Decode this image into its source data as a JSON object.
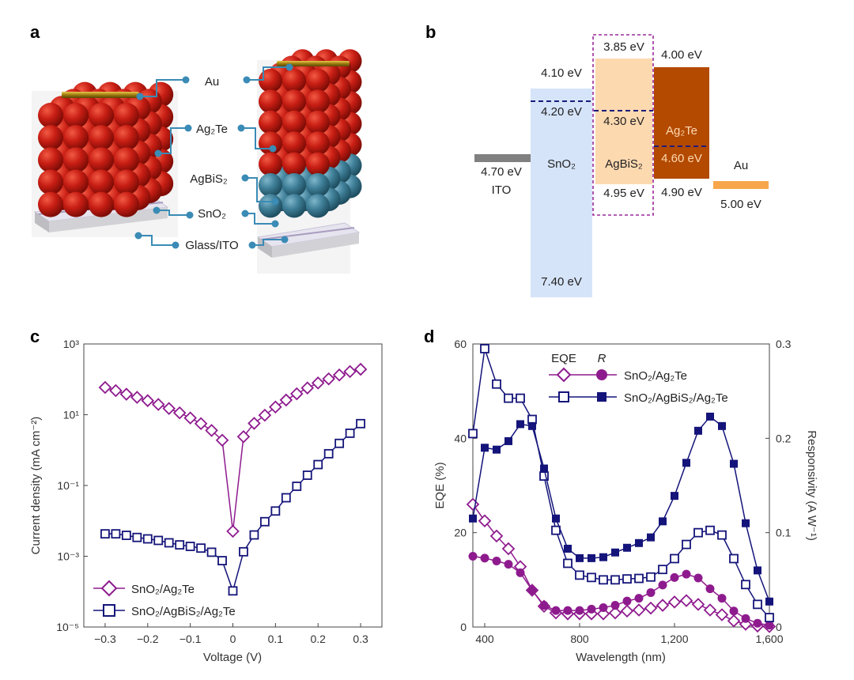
{
  "panels": {
    "a": {
      "label": "a",
      "layers": [
        "Au",
        "Ag₂Te",
        "AgBiS₂",
        "SnO₂",
        "Glass/ITO"
      ],
      "colors": {
        "ag2te": "#c81e14",
        "agbis2": "#3f7f98",
        "connector": "#3a8bb5",
        "gold": "#b8900f"
      }
    },
    "b": {
      "label": "b",
      "materials": {
        "ito": {
          "name": "ITO",
          "level": "4.70 eV",
          "color": "#808080"
        },
        "sno2": {
          "name": "SnO₂",
          "top": "4.10 eV",
          "fermi": "4.20 eV",
          "bottom": "7.40 eV",
          "color": "#d6e4f9"
        },
        "agbis2": {
          "name": "AgBiS₂",
          "top": "3.85 eV",
          "fermi": "4.30 eV",
          "bottom": "4.95 eV",
          "color": "#fdd9b0"
        },
        "ag2te": {
          "name": "Ag₂Te",
          "top": "4.00 eV",
          "fermi": "4.60 eV",
          "bottom": "4.90 eV",
          "color": "#b34a00"
        },
        "au": {
          "name": "Au",
          "level": "5.00 eV",
          "color": "#f7a64c"
        }
      }
    }
  },
  "chart_data": [
    {
      "panel": "c",
      "type": "line",
      "xlabel": "Voltage (V)",
      "ylabel": "Current density (mA cm⁻²)",
      "yscale": "log",
      "xlim": [
        -0.35,
        0.35
      ],
      "ylim": [
        1e-05,
        1000.0
      ],
      "xticks": [
        -0.3,
        -0.2,
        -0.1,
        0,
        0.1,
        0.2,
        0.3
      ],
      "xtick_labels": [
        "−0.3",
        "−0.2",
        "−0.1",
        "0",
        "0.1",
        "0.2",
        "0.3"
      ],
      "ytick_labels": [
        "10³",
        "10¹",
        "10⁻¹",
        "10⁻³",
        "10⁻⁵"
      ],
      "yticks": [
        1000.0,
        10.0,
        0.1,
        0.001,
        1e-05
      ],
      "legend": "bottom-left",
      "x": [
        -0.3,
        -0.275,
        -0.25,
        -0.225,
        -0.2,
        -0.175,
        -0.15,
        -0.125,
        -0.1,
        -0.075,
        -0.05,
        -0.025,
        0,
        0.025,
        0.05,
        0.075,
        0.1,
        0.125,
        0.15,
        0.175,
        0.2,
        0.225,
        0.25,
        0.275,
        0.3
      ],
      "series": [
        {
          "name": "SnO₂/Ag₂Te",
          "marker": "diamond-open",
          "color": "#8e1b8e",
          "values": [
            59,
            48,
            38,
            31,
            25,
            19.5,
            15,
            11.3,
            8.1,
            5.6,
            3.6,
            1.9,
            0.0051,
            2.4,
            5.7,
            9.7,
            16.5,
            26,
            39,
            57,
            79,
            103,
            133,
            166,
            192
          ]
        },
        {
          "name": "SnO₂/AgBiS₂/Ag₂Te",
          "marker": "square-open",
          "color": "#14147a",
          "values": [
            0.0043,
            0.0043,
            0.0039,
            0.0034,
            0.0031,
            0.0028,
            0.0024,
            0.0021,
            0.0019,
            0.0017,
            0.0013,
            0.00075,
            0.000105,
            0.00134,
            0.004,
            0.0095,
            0.019,
            0.045,
            0.095,
            0.195,
            0.39,
            0.79,
            1.55,
            3.0,
            5.6
          ]
        }
      ]
    },
    {
      "panel": "d",
      "type": "line",
      "xlabel": "Wavelength (nm)",
      "ylabel": "EQE (%)",
      "y2label": "Responsivity (A W⁻¹)",
      "xlim": [
        350,
        1600
      ],
      "ylim": [
        0,
        60
      ],
      "y2lim": [
        0,
        0.3
      ],
      "xticks": [
        400,
        800,
        1200,
        1600
      ],
      "xtick_labels": [
        "400",
        "800",
        "1,200",
        "1,600"
      ],
      "yticks": [
        0,
        20,
        40,
        60
      ],
      "ytick_labels": [
        "0",
        "20",
        "40",
        "60"
      ],
      "y2ticks": [
        0,
        0.1,
        0.2,
        0.3
      ],
      "y2tick_labels": [
        "0",
        "0.1",
        "0.2",
        "0.3"
      ],
      "legend": "top-center",
      "legend_headers": [
        "EQE",
        "R"
      ],
      "legend_rows": [
        "SnO₂/Ag₂Te",
        "SnO₂/AgBiS₂/Ag₂Te"
      ],
      "x": [
        350,
        400,
        450,
        500,
        550,
        600,
        650,
        700,
        750,
        800,
        850,
        900,
        950,
        1000,
        1050,
        1100,
        1150,
        1200,
        1250,
        1300,
        1350,
        1400,
        1450,
        1500,
        1550,
        1600
      ],
      "series": [
        {
          "quantity": "EQE",
          "device": "SnO₂/Ag₂Te",
          "axis": "left",
          "marker": "diamond-open",
          "color": "#8e1b8e",
          "values": [
            26,
            22.5,
            19.3,
            16.6,
            12.8,
            7.8,
            4.4,
            3,
            2.8,
            2.8,
            2.8,
            2.8,
            3,
            3.4,
            3.6,
            4,
            4.6,
            5.3,
            5.6,
            4.8,
            3.6,
            2.6,
            1.3,
            0.6,
            0.2,
            0.1
          ]
        },
        {
          "quantity": "R",
          "device": "SnO₂/Ag₂Te",
          "axis": "right",
          "marker": "circle-filled",
          "color": "#8e1b8e",
          "values": [
            0.075,
            0.073,
            0.07,
            0.0665,
            0.0575,
            0.039,
            0.023,
            0.0175,
            0.0175,
            0.0175,
            0.019,
            0.0205,
            0.023,
            0.0275,
            0.0305,
            0.0365,
            0.0445,
            0.0525,
            0.056,
            0.052,
            0.0405,
            0.0305,
            0.017,
            0.009,
            0.004,
            0.002
          ]
        },
        {
          "quantity": "EQE",
          "device": "SnO₂/AgBiS₂/Ag₂Te",
          "axis": "left",
          "marker": "square-open",
          "color": "#14147a",
          "values": [
            41,
            59,
            51.5,
            48.5,
            48.5,
            44,
            32,
            20.5,
            13.5,
            11,
            10.5,
            10,
            10,
            10.2,
            10.3,
            10.6,
            12.2,
            14.5,
            17.5,
            20,
            20.5,
            19.5,
            14.5,
            9,
            4.8,
            2
          ]
        },
        {
          "quantity": "R",
          "device": "SnO₂/AgBiS₂/Ag₂Te",
          "axis": "right",
          "marker": "square-filled",
          "color": "#14147a",
          "values": [
            0.115,
            0.19,
            0.188,
            0.197,
            0.215,
            0.213,
            0.168,
            0.115,
            0.083,
            0.073,
            0.073,
            0.074,
            0.079,
            0.084,
            0.089,
            0.095,
            0.112,
            0.139,
            0.174,
            0.208,
            0.223,
            0.213,
            0.173,
            0.11,
            0.06,
            0.027
          ]
        }
      ]
    }
  ]
}
